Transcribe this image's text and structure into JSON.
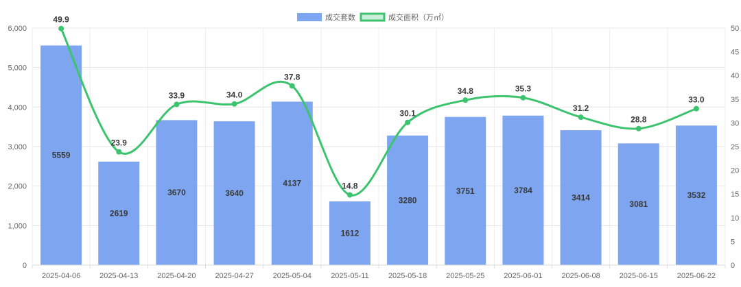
{
  "chart_data": {
    "type": "bar",
    "categories": [
      "2025-04-06",
      "2025-04-13",
      "2025-04-20",
      "2025-04-27",
      "2025-05-04",
      "2025-05-11",
      "2025-05-18",
      "2025-05-25",
      "2025-06-01",
      "2025-06-08",
      "2025-06-15",
      "2025-06-22"
    ],
    "series": [
      {
        "name": "成交套数",
        "type": "bar",
        "axis": "left",
        "color": "#7ea6f0",
        "values": [
          5559,
          2619,
          3670,
          3640,
          4137,
          1612,
          3280,
          3751,
          3784,
          3414,
          3081,
          3532
        ],
        "labels": [
          "5559",
          "2619",
          "3670",
          "3640",
          "4137",
          "1612",
          "3280",
          "3751",
          "3784",
          "3414",
          "3081",
          "3532"
        ]
      },
      {
        "name": "成交面积（万㎡）",
        "type": "line",
        "axis": "right",
        "color": "#3cc36e",
        "smooth": true,
        "values": [
          49.9,
          23.9,
          33.9,
          34.0,
          37.8,
          14.8,
          30.1,
          34.8,
          35.3,
          31.2,
          28.8,
          33.0
        ],
        "labels": [
          "49.9",
          "23.9",
          "33.9",
          "34.0",
          "37.8",
          "14.8",
          "30.1",
          "34.8",
          "35.3",
          "31.2",
          "28.8",
          "33.0"
        ]
      }
    ],
    "y_left": {
      "min": 0,
      "max": 6000,
      "ticks": [
        0,
        1000,
        2000,
        3000,
        4000,
        5000,
        6000
      ],
      "tick_labels": [
        "0",
        "1,000",
        "2,000",
        "3,000",
        "4,000",
        "5,000",
        "6,000"
      ]
    },
    "y_right": {
      "min": 0,
      "max": 50,
      "ticks": [
        0,
        5,
        10,
        15,
        20,
        25,
        30,
        35,
        40,
        45,
        50
      ],
      "tick_labels": [
        "0",
        "5",
        "10",
        "15",
        "20",
        "25",
        "30",
        "35",
        "40",
        "45",
        "50"
      ]
    },
    "grid": true,
    "legend_position": "top-center",
    "title": "",
    "xlabel": "",
    "ylabel": ""
  }
}
